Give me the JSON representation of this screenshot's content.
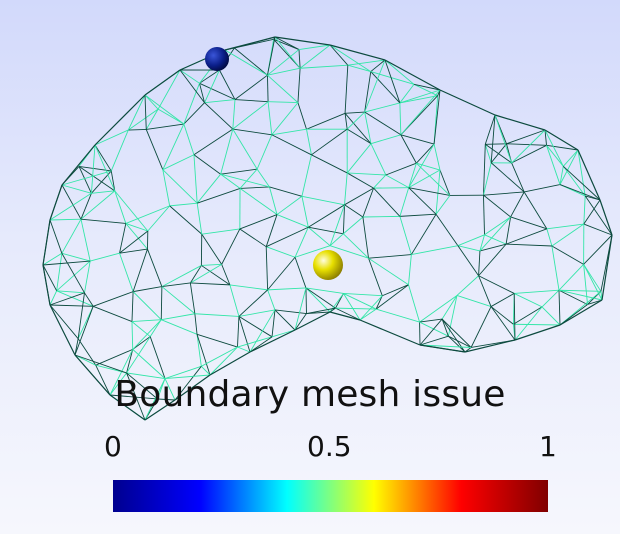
{
  "scene": {
    "title": "Boundary mesh issue",
    "mesh_colors": {
      "front": "#33e6a8",
      "back": "#0c4a3e"
    },
    "markers": [
      {
        "name": "low-value-marker",
        "value": 0.0,
        "color": "#0b1f8a"
      },
      {
        "name": "mid-value-marker",
        "value": 0.5,
        "color": "#e8e000"
      }
    ]
  },
  "colorbar": {
    "ticks": [
      "0",
      "0.5",
      "1"
    ],
    "range": [
      0,
      1
    ],
    "colormap": "jet",
    "stops": [
      "#00008f",
      "#0000ff",
      "#00ffff",
      "#ffff00",
      "#ff0000",
      "#800000"
    ]
  }
}
